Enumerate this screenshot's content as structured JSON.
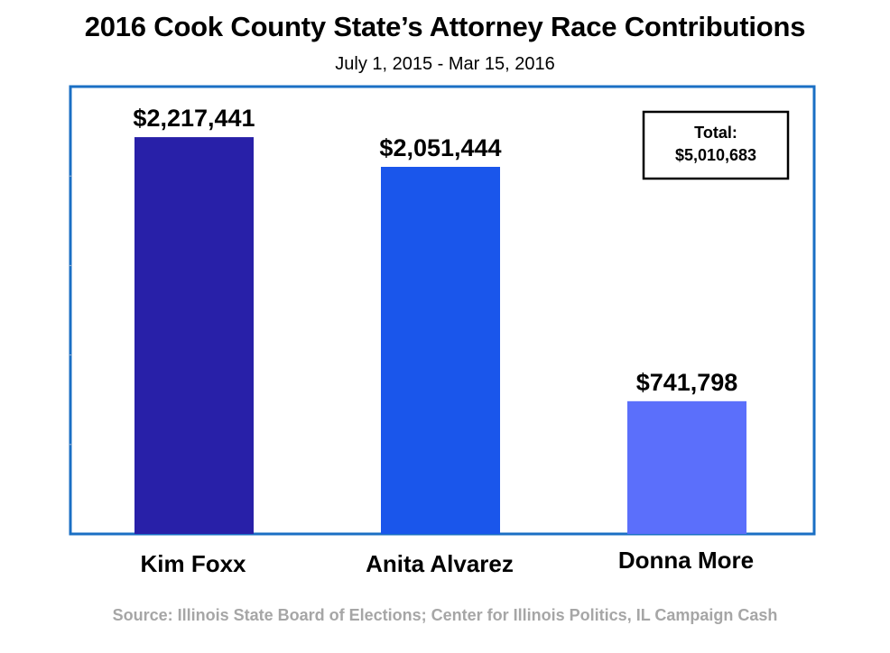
{
  "chart_data": {
    "type": "bar",
    "title": "2016 Cook County State’s Attorney Race Contributions",
    "subtitle": "July 1, 2015 - Mar 15, 2016",
    "categories": [
      "Kim Foxx",
      "Anita Alvarez",
      "Donna More"
    ],
    "values": [
      2217441,
      2051444,
      741798
    ],
    "value_labels": [
      "$2,217,441",
      "$2,051,444",
      "$741,798"
    ],
    "bar_colors": [
      "#2820a8",
      "#1a56eb",
      "#5b6ffb"
    ],
    "ylim": [
      0,
      2500000
    ],
    "grid": false,
    "annotation": {
      "line1": "Total:",
      "line2": "$5,010,683"
    },
    "source": "Source: Illinois State Board of Elections; Center for Illinois Politics, IL Campaign Cash"
  },
  "colors": {
    "frame": "#1a6fc4",
    "source_text": "#a6a6a6"
  }
}
